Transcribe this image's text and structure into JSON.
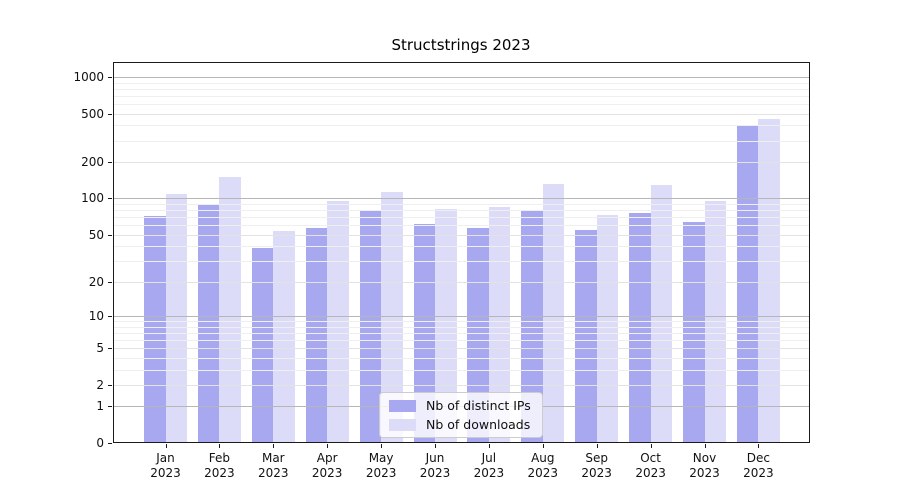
{
  "chart_data": {
    "type": "bar",
    "title": "Structstrings 2023",
    "categories": [
      "Jan",
      "Feb",
      "Mar",
      "Apr",
      "May",
      "Jun",
      "Jul",
      "Aug",
      "Sep",
      "Oct",
      "Nov",
      "Dec"
    ],
    "x_year_label": "2023",
    "series": [
      {
        "name": "Nb of distinct IPs",
        "color": "#a8a8f0",
        "values": [
          72,
          88,
          39,
          57,
          81,
          61,
          57,
          78,
          55,
          76,
          64,
          395
        ]
      },
      {
        "name": "Nb of downloads",
        "color": "#dcdcf8",
        "values": [
          108,
          150,
          54,
          95,
          114,
          82,
          85,
          131,
          73,
          130,
          95,
          450
        ]
      }
    ],
    "yscale": "log10(1+y)",
    "ylim": [
      0,
      1300
    ],
    "yticks": [
      0,
      1,
      2,
      5,
      10,
      20,
      50,
      100,
      200,
      500,
      1000
    ],
    "grid": "on, drawn above bars",
    "legend_position": "lower center",
    "colors": {
      "major_gridline": "#b6b6b6",
      "sub_gridline": "#e3e3e3",
      "minor_gridline": "#efefef",
      "spine": "#1a1a1a",
      "legend_border": "#cccccc"
    }
  }
}
